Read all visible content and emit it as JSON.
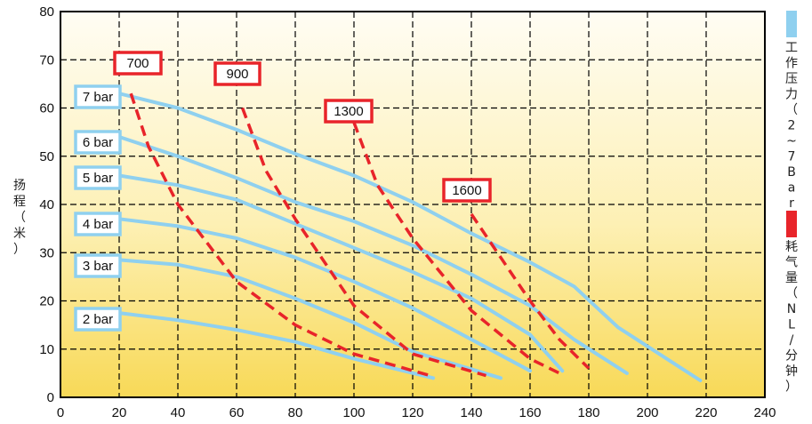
{
  "chart_data": {
    "type": "line",
    "ylabel": "扬程（米）",
    "xlim": [
      0,
      240
    ],
    "ylim": [
      0,
      80
    ],
    "x_ticks": [
      0,
      20,
      40,
      60,
      80,
      100,
      120,
      140,
      160,
      180,
      200,
      220,
      240
    ],
    "y_ticks": [
      0,
      10,
      20,
      30,
      40,
      50,
      60,
      70,
      80
    ],
    "grid": true,
    "colors": {
      "pressure": "#8fd0ef",
      "air": "#e8242a",
      "grid": "#000000"
    },
    "legend": [
      {
        "label": "工作压力（2~7Bar）",
        "color": "#8fd0ef"
      },
      {
        "label": "耗气量（NL/分钟）",
        "color": "#e8242a"
      }
    ],
    "pressure_series": [
      {
        "name": "7 bar",
        "points": [
          [
            20,
            63
          ],
          [
            40,
            60
          ],
          [
            60,
            55.5
          ],
          [
            80,
            50.5
          ],
          [
            100,
            46
          ],
          [
            120,
            40.5
          ],
          [
            140,
            34
          ],
          [
            160,
            28
          ],
          [
            175,
            23
          ],
          [
            190,
            14.5
          ],
          [
            218,
            3.5
          ]
        ]
      },
      {
        "name": "6 bar",
        "points": [
          [
            20,
            54
          ],
          [
            40,
            50
          ],
          [
            60,
            45.5
          ],
          [
            80,
            40.5
          ],
          [
            100,
            36.5
          ],
          [
            120,
            31.5
          ],
          [
            140,
            25.5
          ],
          [
            160,
            19
          ],
          [
            175,
            12
          ],
          [
            193,
            5
          ]
        ]
      },
      {
        "name": "5 bar",
        "points": [
          [
            20,
            46
          ],
          [
            40,
            44
          ],
          [
            60,
            41
          ],
          [
            80,
            36
          ],
          [
            100,
            31
          ],
          [
            120,
            26
          ],
          [
            140,
            20.5
          ],
          [
            160,
            13
          ],
          [
            171,
            5.5
          ]
        ]
      },
      {
        "name": "4 bar",
        "points": [
          [
            20,
            37
          ],
          [
            40,
            35.5
          ],
          [
            60,
            33
          ],
          [
            80,
            29
          ],
          [
            100,
            24
          ],
          [
            120,
            18.5
          ],
          [
            140,
            12
          ],
          [
            160,
            5.5
          ]
        ]
      },
      {
        "name": "3 bar",
        "points": [
          [
            20,
            28.5
          ],
          [
            40,
            27.5
          ],
          [
            60,
            25
          ],
          [
            80,
            20.5
          ],
          [
            100,
            15.5
          ],
          [
            120,
            9.5
          ],
          [
            150,
            4
          ]
        ]
      },
      {
        "name": "2 bar",
        "points": [
          [
            20,
            17.5
          ],
          [
            40,
            16
          ],
          [
            60,
            14
          ],
          [
            80,
            11.5
          ],
          [
            100,
            8
          ],
          [
            127,
            4
          ]
        ]
      }
    ],
    "air_series": [
      {
        "name": "700",
        "points": [
          [
            24,
            63
          ],
          [
            30,
            52
          ],
          [
            40,
            40
          ],
          [
            60,
            24
          ],
          [
            80,
            15
          ],
          [
            100,
            9
          ],
          [
            126,
            4.5
          ]
        ]
      },
      {
        "name": "900",
        "points": [
          [
            62,
            60
          ],
          [
            70,
            47
          ],
          [
            80,
            37
          ],
          [
            100,
            19
          ],
          [
            120,
            9
          ],
          [
            145,
            4.5
          ]
        ]
      },
      {
        "name": "1300",
        "points": [
          [
            100,
            57
          ],
          [
            108,
            44
          ],
          [
            120,
            33
          ],
          [
            140,
            18
          ],
          [
            160,
            8
          ],
          [
            170,
            5
          ]
        ]
      },
      {
        "name": "1600",
        "points": [
          [
            140,
            38
          ],
          [
            150,
            29
          ],
          [
            160,
            20
          ],
          [
            170,
            12
          ],
          [
            180,
            6
          ]
        ]
      }
    ],
    "pressure_labels": [
      "7 bar",
      "6 bar",
      "5 bar",
      "4 bar",
      "3 bar",
      "2 bar"
    ],
    "air_labels": [
      "700",
      "900",
      "1300",
      "1600"
    ]
  }
}
